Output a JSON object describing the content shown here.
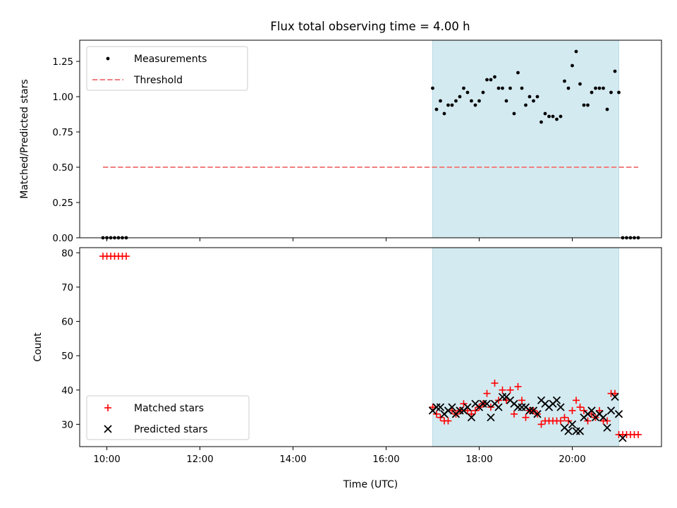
{
  "chart_data": [
    {
      "type": "scatter",
      "title": "Flux total observing time = 4.00 h",
      "xlabel": "",
      "ylabel": "Matched/Predicted stars",
      "xlim": [
        "09:25",
        "21:55"
      ],
      "ylim": [
        0,
        1.4
      ],
      "xticks": [
        "10:00",
        "12:00",
        "14:00",
        "16:00",
        "18:00",
        "20:00"
      ],
      "yticks": [
        "0.00",
        "0.25",
        "0.50",
        "0.75",
        "1.00",
        "1.25"
      ],
      "shaded_interval": [
        "17:00",
        "21:00"
      ],
      "shade_color": "#d4eaf1",
      "legend": {
        "loc": "upper-left"
      },
      "series": [
        {
          "name": "Measurements",
          "marker": "dot",
          "color": "#000000",
          "points": [
            [
              "09:55",
              0
            ],
            [
              "10:00",
              0
            ],
            [
              "10:05",
              0
            ],
            [
              "10:10",
              0
            ],
            [
              "10:15",
              0
            ],
            [
              "10:20",
              0
            ],
            [
              "10:25",
              0
            ],
            [
              "17:00",
              1.06
            ],
            [
              "17:05",
              0.91
            ],
            [
              "17:10",
              0.97
            ],
            [
              "17:15",
              0.88
            ],
            [
              "17:20",
              0.94
            ],
            [
              "17:25",
              0.94
            ],
            [
              "17:30",
              0.97
            ],
            [
              "17:35",
              1.0
            ],
            [
              "17:40",
              1.06
            ],
            [
              "17:45",
              1.03
            ],
            [
              "17:50",
              0.97
            ],
            [
              "17:55",
              0.94
            ],
            [
              "18:00",
              0.97
            ],
            [
              "18:05",
              1.03
            ],
            [
              "18:10",
              1.12
            ],
            [
              "18:15",
              1.12
            ],
            [
              "18:20",
              1.14
            ],
            [
              "18:25",
              1.06
            ],
            [
              "18:30",
              1.06
            ],
            [
              "18:35",
              0.97
            ],
            [
              "18:40",
              1.06
            ],
            [
              "18:45",
              0.88
            ],
            [
              "18:50",
              1.17
            ],
            [
              "18:55",
              1.06
            ],
            [
              "19:00",
              0.94
            ],
            [
              "19:05",
              1.0
            ],
            [
              "19:10",
              0.97
            ],
            [
              "19:15",
              1.0
            ],
            [
              "19:20",
              0.82
            ],
            [
              "19:25",
              0.88
            ],
            [
              "19:30",
              0.86
            ],
            [
              "19:35",
              0.86
            ],
            [
              "19:40",
              0.84
            ],
            [
              "19:45",
              0.86
            ],
            [
              "19:50",
              1.11
            ],
            [
              "19:55",
              1.06
            ],
            [
              "20:00",
              1.22
            ],
            [
              "20:05",
              1.32
            ],
            [
              "20:10",
              1.09
            ],
            [
              "20:15",
              0.94
            ],
            [
              "20:20",
              0.94
            ],
            [
              "20:25",
              1.03
            ],
            [
              "20:30",
              1.06
            ],
            [
              "20:35",
              1.06
            ],
            [
              "20:40",
              1.06
            ],
            [
              "20:45",
              0.91
            ],
            [
              "20:50",
              1.03
            ],
            [
              "20:55",
              1.18
            ],
            [
              "21:00",
              1.03
            ],
            [
              "21:05",
              0
            ],
            [
              "21:10",
              0
            ],
            [
              "21:15",
              0
            ],
            [
              "21:20",
              0
            ],
            [
              "21:25",
              0
            ]
          ]
        },
        {
          "name": "Threshold",
          "marker": "dashed-line",
          "color": "#f08080",
          "points": [
            [
              "09:55",
              0.5
            ],
            [
              "21:25",
              0.5
            ]
          ]
        }
      ]
    },
    {
      "type": "scatter",
      "title": "",
      "xlabel": "Time (UTC)",
      "ylabel": "Count",
      "xlim": [
        "09:25",
        "21:55"
      ],
      "ylim": [
        23.5,
        81.5
      ],
      "xticks": [
        "10:00",
        "12:00",
        "14:00",
        "16:00",
        "18:00",
        "20:00"
      ],
      "yticks": [
        "30",
        "40",
        "50",
        "60",
        "70",
        "80"
      ],
      "shaded_interval": [
        "17:00",
        "21:00"
      ],
      "shade_color": "#d4eaf1",
      "legend": {
        "loc": "lower-left"
      },
      "series": [
        {
          "name": "Matched stars",
          "marker": "plus",
          "color": "#ff0000",
          "points": [
            [
              "09:55",
              79
            ],
            [
              "10:00",
              79
            ],
            [
              "10:05",
              79
            ],
            [
              "10:10",
              79
            ],
            [
              "10:15",
              79
            ],
            [
              "10:20",
              79
            ],
            [
              "10:25",
              79
            ],
            [
              "17:00",
              35
            ],
            [
              "17:05",
              33
            ],
            [
              "17:10",
              32
            ],
            [
              "17:15",
              31
            ],
            [
              "17:20",
              31
            ],
            [
              "17:25",
              34
            ],
            [
              "17:30",
              33
            ],
            [
              "17:35",
              34
            ],
            [
              "17:40",
              36
            ],
            [
              "17:45",
              34
            ],
            [
              "17:50",
              33
            ],
            [
              "17:55",
              34
            ],
            [
              "18:00",
              35
            ],
            [
              "18:05",
              36
            ],
            [
              "18:10",
              39
            ],
            [
              "18:15",
              35
            ],
            [
              "18:20",
              42
            ],
            [
              "18:25",
              37
            ],
            [
              "18:30",
              40
            ],
            [
              "18:35",
              37
            ],
            [
              "18:40",
              40
            ],
            [
              "18:45",
              33
            ],
            [
              "18:50",
              41
            ],
            [
              "18:55",
              37
            ],
            [
              "19:00",
              32
            ],
            [
              "19:05",
              34
            ],
            [
              "19:10",
              34
            ],
            [
              "19:15",
              33
            ],
            [
              "19:20",
              30
            ],
            [
              "19:25",
              31
            ],
            [
              "19:30",
              31
            ],
            [
              "19:35",
              31
            ],
            [
              "19:40",
              31
            ],
            [
              "19:45",
              31
            ],
            [
              "19:50",
              32
            ],
            [
              "19:55",
              31
            ],
            [
              "20:00",
              34
            ],
            [
              "20:05",
              37
            ],
            [
              "20:10",
              35
            ],
            [
              "20:15",
              34
            ],
            [
              "20:20",
              31
            ],
            [
              "20:25",
              33
            ],
            [
              "20:30",
              32
            ],
            [
              "20:35",
              34
            ],
            [
              "20:40",
              31
            ],
            [
              "20:45",
              31
            ],
            [
              "20:50",
              39
            ],
            [
              "20:55",
              39
            ],
            [
              "21:00",
              27
            ],
            [
              "21:05",
              27
            ],
            [
              "21:10",
              27
            ],
            [
              "21:15",
              27
            ],
            [
              "21:20",
              27
            ],
            [
              "21:25",
              27
            ]
          ]
        },
        {
          "name": "Predicted stars",
          "marker": "x",
          "color": "#000000",
          "points": [
            [
              "17:00",
              34
            ],
            [
              "17:05",
              35
            ],
            [
              "17:10",
              35
            ],
            [
              "17:15",
              33
            ],
            [
              "17:20",
              34
            ],
            [
              "17:25",
              35
            ],
            [
              "17:30",
              33
            ],
            [
              "17:35",
              34
            ],
            [
              "17:40",
              34
            ],
            [
              "17:45",
              35
            ],
            [
              "17:50",
              32
            ],
            [
              "17:55",
              36
            ],
            [
              "18:00",
              35
            ],
            [
              "18:05",
              36
            ],
            [
              "18:10",
              36
            ],
            [
              "18:15",
              32
            ],
            [
              "18:20",
              36
            ],
            [
              "18:25",
              35
            ],
            [
              "18:30",
              38
            ],
            [
              "18:35",
              38
            ],
            [
              "18:40",
              37
            ],
            [
              "18:45",
              36
            ],
            [
              "18:50",
              35
            ],
            [
              "18:55",
              35
            ],
            [
              "19:00",
              35
            ],
            [
              "19:05",
              34
            ],
            [
              "19:10",
              34
            ],
            [
              "19:15",
              33
            ],
            [
              "19:20",
              37
            ],
            [
              "19:25",
              36
            ],
            [
              "19:30",
              35
            ],
            [
              "19:35",
              36
            ],
            [
              "19:40",
              37
            ],
            [
              "19:45",
              35
            ],
            [
              "19:50",
              29
            ],
            [
              "19:55",
              28
            ],
            [
              "20:00",
              30
            ],
            [
              "20:05",
              28
            ],
            [
              "20:10",
              28
            ],
            [
              "20:15",
              32
            ],
            [
              "20:20",
              33
            ],
            [
              "20:25",
              34
            ],
            [
              "20:30",
              32
            ],
            [
              "20:35",
              33
            ],
            [
              "20:40",
              32
            ],
            [
              "20:45",
              29
            ],
            [
              "20:50",
              34
            ],
            [
              "20:55",
              38
            ],
            [
              "21:00",
              33
            ],
            [
              "21:05",
              26
            ]
          ]
        }
      ]
    }
  ]
}
